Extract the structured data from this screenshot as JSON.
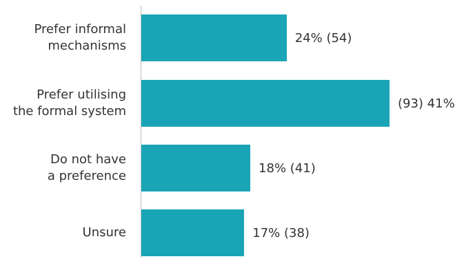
{
  "chart_data": {
    "type": "bar",
    "orientation": "horizontal",
    "categories": [
      "Prefer informal\nmechanisms",
      "Prefer utilising\nthe formal system",
      "Do not have\na preference",
      "Unsure"
    ],
    "values": [
      24,
      41,
      18,
      17
    ],
    "value_labels": [
      "24% (54)",
      "(93) 41%",
      "18% (41)",
      "17% (38)"
    ],
    "color": "#1aa5b6"
  }
}
